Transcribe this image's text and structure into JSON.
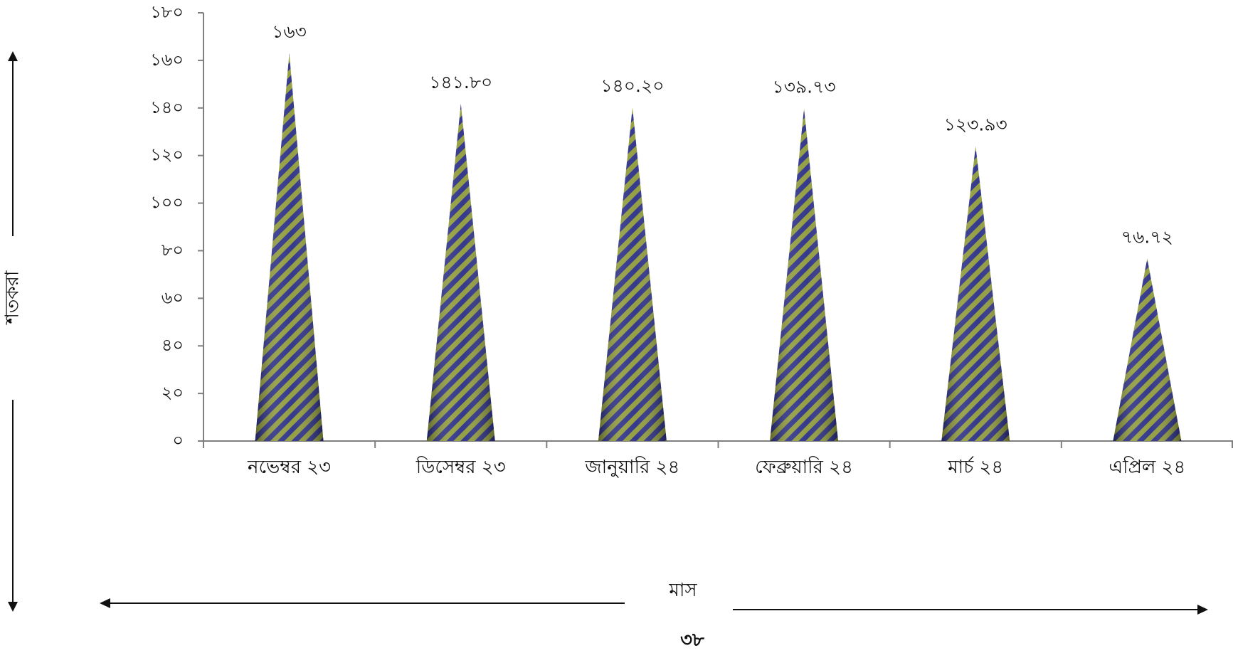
{
  "chart_data": {
    "type": "bar",
    "categories": [
      "নভেম্বর ২৩",
      "ডিসেম্বর ২৩",
      "জানুয়ারি ২৪",
      "ফেব্রুয়ারি ২৪",
      "মার্চ ২৪",
      "এপ্রিল ২৪"
    ],
    "values": [
      163,
      141.8,
      140.2,
      139.73,
      123.93,
      76.72
    ],
    "data_labels": [
      "১৬৩",
      "১৪১.৮০",
      "১৪০.২০",
      "১৩৯.৭৩",
      "১২৩.৯৩",
      "৭৬.৭২"
    ],
    "ylim": [
      0,
      180
    ],
    "y_ticks": [
      0,
      20,
      40,
      60,
      80,
      100,
      120,
      140,
      160,
      180
    ],
    "y_tick_labels": [
      "০",
      "২০",
      "৪০",
      "৬০",
      "৮০",
      "১০০",
      "১২০",
      "১৪০",
      "১৬০",
      "১৮০"
    ],
    "xlabel": "মাস",
    "ylabel": "শতকরা",
    "mark_shape": "cone",
    "grid": false,
    "legend": "none",
    "colors": {
      "stripe_dark": "#2b2f86",
      "stripe_light": "#8f9a3a",
      "axis": "#7f7f7f"
    }
  },
  "page_number": "৩৮"
}
